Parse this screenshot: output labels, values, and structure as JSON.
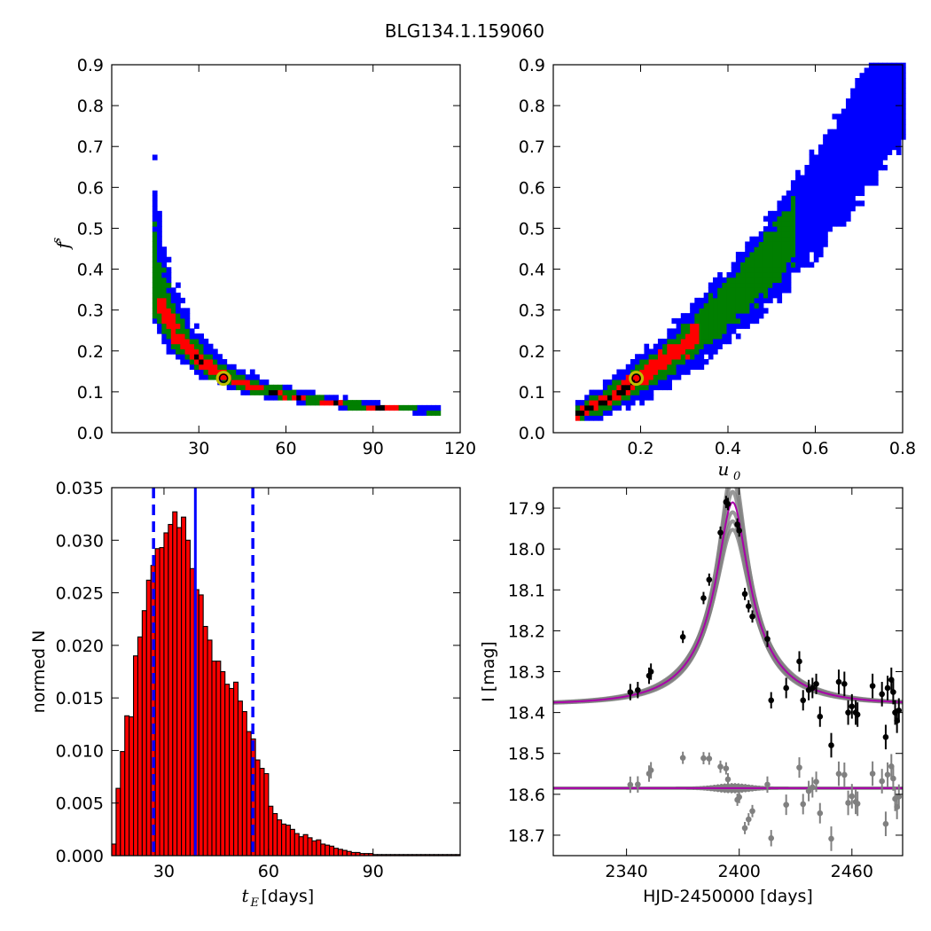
{
  "chart_data": [
    {
      "type": "heatmap",
      "id": "panel-fs-vs-tE",
      "title": "BLG134.1.159060",
      "xlabel": "",
      "ylabel": "f",
      "ylabel_sub": "s",
      "xlim": [
        0,
        120
      ],
      "ylim": [
        0,
        0.9
      ],
      "xticks": [
        "30",
        "60",
        "90",
        "120"
      ],
      "xtick_values": [
        30,
        60,
        90,
        120
      ],
      "yticks": [
        "0.0",
        "0.1",
        "0.2",
        "0.3",
        "0.4",
        "0.5",
        "0.6",
        "0.7",
        "0.8",
        "0.9"
      ],
      "ytick_values": [
        0,
        0.1,
        0.2,
        0.3,
        0.4,
        0.5,
        0.6,
        0.7,
        0.8,
        0.9
      ],
      "level_colors": [
        "#0000ff",
        "#007f00",
        "#ff0000",
        "#000000"
      ],
      "best_fit": {
        "x": 38.5,
        "y": 0.133
      },
      "marker_color": "#bfbf00"
    },
    {
      "type": "heatmap",
      "id": "panel-fs-vs-u0",
      "xlabel": "u",
      "xlabel_sub": "0",
      "ylabel": "",
      "xlim": [
        0,
        0.8
      ],
      "ylim": [
        0,
        0.9
      ],
      "xticks": [
        "0.2",
        "0.4",
        "0.6",
        "0.8"
      ],
      "xtick_values": [
        0.2,
        0.4,
        0.6,
        0.8
      ],
      "yticks": [
        "0.0",
        "0.1",
        "0.2",
        "0.3",
        "0.4",
        "0.5",
        "0.6",
        "0.7",
        "0.8",
        "0.9"
      ],
      "ytick_values": [
        0,
        0.1,
        0.2,
        0.3,
        0.4,
        0.5,
        0.6,
        0.7,
        0.8,
        0.9
      ],
      "best_fit": {
        "x": 0.19,
        "y": 0.133
      }
    },
    {
      "type": "bar",
      "id": "panel-tE-histogram",
      "xlabel": "t",
      "xlabel_sub": "E",
      "xlabel_unit": " [days]",
      "ylabel": "normed N",
      "xlim": [
        15,
        115
      ],
      "ylim": [
        0,
        0.035
      ],
      "xticks": [
        "30",
        "60",
        "90"
      ],
      "xtick_values": [
        30,
        60,
        90
      ],
      "yticks": [
        "0.000",
        "0.005",
        "0.010",
        "0.015",
        "0.020",
        "0.025",
        "0.030",
        "0.035"
      ],
      "ytick_values": [
        0,
        0.005,
        0.01,
        0.015,
        0.02,
        0.025,
        0.03,
        0.035
      ],
      "bin_width": 1.25,
      "bin_start": 15,
      "values": [
        0.0011,
        0.0064,
        0.0099,
        0.0133,
        0.0132,
        0.019,
        0.0208,
        0.0233,
        0.0262,
        0.0276,
        0.0292,
        0.0293,
        0.0307,
        0.0315,
        0.0327,
        0.0312,
        0.0322,
        0.03,
        0.0273,
        0.0253,
        0.0248,
        0.0218,
        0.0205,
        0.0185,
        0.0185,
        0.0175,
        0.0163,
        0.0159,
        0.0165,
        0.0147,
        0.0137,
        0.0118,
        0.0111,
        0.0091,
        0.0083,
        0.0078,
        0.0047,
        0.004,
        0.0034,
        0.003,
        0.0029,
        0.0025,
        0.0021,
        0.0018,
        0.002,
        0.0017,
        0.0014,
        0.0015,
        0.0011,
        0.001,
        0.0009,
        0.0007,
        0.0006,
        0.0005,
        0.0004,
        0.0003,
        0.0003,
        0.0002,
        0.0002,
        0.0002,
        0.0001,
        0.0001,
        0.0001,
        0.0001,
        0.0001,
        0.0001,
        0.0001,
        0.0001,
        0.0001,
        0.0001,
        0.0001,
        0.0001,
        0.0001,
        0.0001,
        0.0001,
        0.0001,
        0.0001,
        0.0001,
        0.0001,
        0.0001
      ],
      "bar_color": "#ff0000",
      "median": 39.0,
      "lower": 27.0,
      "upper": 55.5,
      "line_color": "#0000ff"
    },
    {
      "type": "scatter",
      "id": "panel-lightcurve",
      "xlabel": "HJD-2450000 [days]",
      "ylabel": "I [mag]",
      "xlim": [
        2301,
        2487
      ],
      "ylim": [
        18.75,
        17.85
      ],
      "xticks": [
        "2340",
        "2400",
        "2460"
      ],
      "xtick_values": [
        2340,
        2400,
        2460
      ],
      "yticks": [
        "17.9",
        "18.0",
        "18.1",
        "18.2",
        "18.3",
        "18.4",
        "18.5",
        "18.6",
        "18.7"
      ],
      "ytick_values": [
        17.9,
        18.0,
        18.1,
        18.2,
        18.3,
        18.4,
        18.5,
        18.6,
        18.7
      ],
      "model": {
        "t0": 2396.5,
        "tE": 38.5,
        "u0": 0.19,
        "fs": 0.133,
        "baseline": 18.38
      },
      "residual_offset": 18.585,
      "model_color": "#aa00aa",
      "band_color": "#808080",
      "data": [
        {
          "t": 2342,
          "m": 18.35,
          "e": 0.02
        },
        {
          "t": 2346,
          "m": 18.345,
          "e": 0.02
        },
        {
          "t": 2352,
          "m": 18.31,
          "e": 0.02
        },
        {
          "t": 2353,
          "m": 18.3,
          "e": 0.02
        },
        {
          "t": 2370,
          "m": 18.215,
          "e": 0.015
        },
        {
          "t": 2381,
          "m": 18.12,
          "e": 0.015
        },
        {
          "t": 2384,
          "m": 18.075,
          "e": 0.015
        },
        {
          "t": 2390,
          "m": 17.96,
          "e": 0.015
        },
        {
          "t": 2393,
          "m": 17.885,
          "e": 0.015
        },
        {
          "t": 2394,
          "m": 17.89,
          "e": 0.015
        },
        {
          "t": 2399,
          "m": 17.94,
          "e": 0.015
        },
        {
          "t": 2400,
          "m": 17.955,
          "e": 0.015
        },
        {
          "t": 2403,
          "m": 18.11,
          "e": 0.015
        },
        {
          "t": 2405,
          "m": 18.14,
          "e": 0.015
        },
        {
          "t": 2407,
          "m": 18.165,
          "e": 0.015
        },
        {
          "t": 2415,
          "m": 18.22,
          "e": 0.02
        },
        {
          "t": 2417,
          "m": 18.37,
          "e": 0.02
        },
        {
          "t": 2425,
          "m": 18.34,
          "e": 0.025
        },
        {
          "t": 2432,
          "m": 18.275,
          "e": 0.025
        },
        {
          "t": 2434,
          "m": 18.37,
          "e": 0.025
        },
        {
          "t": 2437,
          "m": 18.345,
          "e": 0.025
        },
        {
          "t": 2439,
          "m": 18.34,
          "e": 0.025
        },
        {
          "t": 2441,
          "m": 18.33,
          "e": 0.025
        },
        {
          "t": 2443,
          "m": 18.41,
          "e": 0.025
        },
        {
          "t": 2449,
          "m": 18.48,
          "e": 0.03
        },
        {
          "t": 2453,
          "m": 18.325,
          "e": 0.03
        },
        {
          "t": 2456,
          "m": 18.33,
          "e": 0.03
        },
        {
          "t": 2458,
          "m": 18.4,
          "e": 0.03
        },
        {
          "t": 2460,
          "m": 18.385,
          "e": 0.03
        },
        {
          "t": 2462,
          "m": 18.4,
          "e": 0.03
        },
        {
          "t": 2463,
          "m": 18.405,
          "e": 0.03
        },
        {
          "t": 2471,
          "m": 18.335,
          "e": 0.03
        },
        {
          "t": 2476,
          "m": 18.355,
          "e": 0.03
        },
        {
          "t": 2478,
          "m": 18.46,
          "e": 0.03
        },
        {
          "t": 2479,
          "m": 18.34,
          "e": 0.03
        },
        {
          "t": 2481,
          "m": 18.32,
          "e": 0.03
        },
        {
          "t": 2482,
          "m": 18.35,
          "e": 0.03
        },
        {
          "t": 2483,
          "m": 18.4,
          "e": 0.03
        },
        {
          "t": 2484,
          "m": 18.42,
          "e": 0.03
        },
        {
          "t": 2485,
          "m": 18.395,
          "e": 0.03
        }
      ]
    }
  ]
}
